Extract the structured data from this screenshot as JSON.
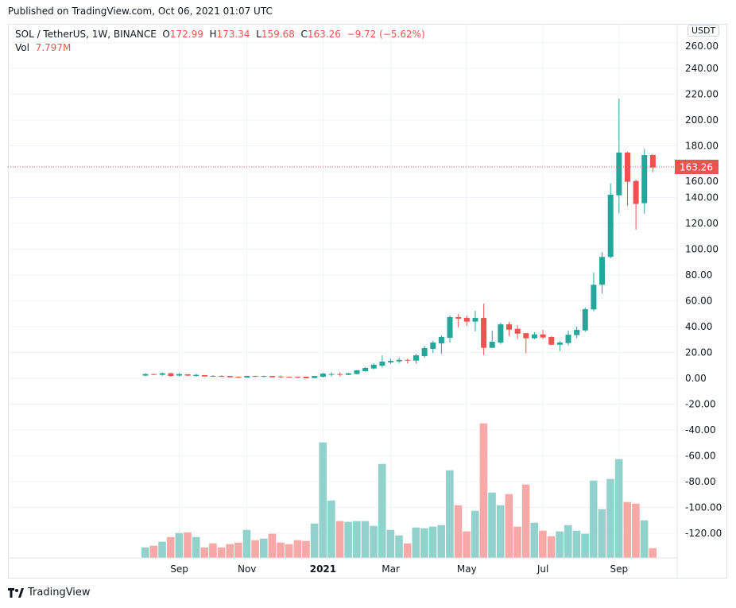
{
  "published": "Published on TradingView.com, Oct 06, 2021 01:07 UTC",
  "legend": {
    "symbol": "SOL / TetherUS, 1W, BINANCE",
    "o_label": "O",
    "o": "172.99",
    "h_label": "H",
    "h": "173.34",
    "l_label": "L",
    "l": "159.68",
    "c_label": "C",
    "c": "163.26",
    "change": "−9.72 (−5.62%)",
    "vol_label": "Vol",
    "vol": "7.797M"
  },
  "currency_button": "USDT",
  "last_price_tag": "163.26",
  "footer_brand": "TradingView",
  "colors": {
    "up": "#26a69a",
    "down": "#ef5350",
    "vol_up": "#92d2cc",
    "vol_down": "#f7a9a7",
    "grid": "#f0f3fa"
  },
  "chart_data": {
    "type": "candlestick",
    "price_axis_ticks": [
      "260.00",
      "240.00",
      "220.00",
      "200.00",
      "180.00",
      "160.00",
      "140.00",
      "120.00",
      "100.00",
      "80.00",
      "60.00",
      "40.00",
      "20.00",
      "0.00",
      "-20.00",
      "-40.00",
      "-60.00",
      "-80.00",
      "-100.00",
      "-120.00"
    ],
    "time_axis_ticks": [
      "Sep",
      "Nov",
      "2021",
      "Mar",
      "May",
      "Jul",
      "Sep"
    ],
    "last_price": 163.26,
    "ohlc": [
      [
        2.1,
        4.1,
        1.6,
        3.3
      ],
      [
        3.3,
        3.5,
        2.5,
        2.9
      ],
      [
        2.7,
        4.5,
        1.8,
        3.9
      ],
      [
        3.9,
        4.5,
        1.2,
        1.8
      ],
      [
        2.1,
        4.1,
        1.4,
        3.3
      ],
      [
        3.1,
        3.3,
        1.6,
        2.1
      ],
      [
        1.8,
        3.5,
        1.2,
        2.7
      ],
      [
        2.5,
        2.5,
        1.4,
        1.4
      ],
      [
        1.8,
        2.5,
        1.2,
        1.4
      ],
      [
        1.8,
        2.5,
        1.2,
        1.4
      ],
      [
        1.8,
        1.8,
        0.8,
        0.8
      ],
      [
        1.2,
        1.4,
        0.4,
        0.8
      ],
      [
        0.6,
        2.0,
        0.4,
        1.8
      ],
      [
        1.8,
        2.1,
        1.0,
        1.2
      ],
      [
        1.2,
        2.1,
        0.8,
        1.8
      ],
      [
        1.8,
        1.8,
        0.8,
        0.8
      ],
      [
        1.4,
        2.1,
        0.6,
        0.8
      ],
      [
        1.2,
        1.4,
        0.6,
        0.8
      ],
      [
        1.2,
        1.4,
        0.6,
        0.8
      ],
      [
        1.2,
        1.4,
        0.0,
        0.0
      ],
      [
        0.2,
        1.9,
        0.0,
        1.8
      ],
      [
        1.2,
        4.0,
        0.6,
        3.7
      ],
      [
        2.7,
        4.7,
        1.4,
        3.3
      ],
      [
        3.3,
        4.7,
        1.4,
        2.9
      ],
      [
        2.7,
        4.1,
        2.3,
        3.9
      ],
      [
        3.3,
        6.5,
        3.1,
        6.2
      ],
      [
        5.5,
        8.8,
        5.1,
        8.0
      ],
      [
        7.6,
        11.7,
        7.0,
        10.5
      ],
      [
        9.8,
        17.8,
        8.2,
        12.9
      ],
      [
        12.3,
        15.3,
        11.1,
        13.5
      ],
      [
        13.1,
        16.0,
        11.7,
        14.3
      ],
      [
        14.3,
        15.2,
        11.5,
        13.9
      ],
      [
        13.7,
        19.0,
        11.3,
        17.8
      ],
      [
        17.2,
        25.2,
        16.0,
        23.4
      ],
      [
        22.8,
        28.9,
        19.5,
        27.7
      ],
      [
        27.0,
        33.0,
        19.0,
        32.0
      ],
      [
        31.4,
        48.6,
        27.7,
        47.4
      ],
      [
        47.4,
        49.8,
        39.4,
        46.2
      ],
      [
        46.8,
        48.6,
        40.6,
        43.9
      ],
      [
        43.9,
        52.3,
        36.3,
        46.8
      ],
      [
        46.8,
        57.8,
        18.0,
        23.6
      ],
      [
        23.6,
        36.9,
        23.6,
        28.3
      ],
      [
        27.7,
        43.0,
        26.5,
        41.8
      ],
      [
        41.8,
        43.7,
        32.8,
        37.7
      ],
      [
        38.3,
        41.2,
        30.3,
        34.6
      ],
      [
        35.0,
        35.0,
        19.3,
        31.0
      ],
      [
        31.0,
        35.7,
        30.3,
        34.0
      ],
      [
        34.0,
        37.5,
        30.3,
        31.6
      ],
      [
        32.0,
        32.5,
        25.5,
        26.0
      ],
      [
        26.0,
        28.9,
        21.1,
        27.7
      ],
      [
        27.3,
        36.9,
        25.5,
        33.8
      ],
      [
        33.4,
        40.0,
        31.0,
        37.5
      ],
      [
        37.1,
        54.8,
        35.9,
        53.5
      ],
      [
        53.3,
        81.8,
        51.9,
        72.4
      ],
      [
        72.4,
        97.6,
        65.6,
        94.0
      ],
      [
        94.0,
        150.8,
        92.9,
        142.2
      ],
      [
        141.7,
        216.6,
        127.6,
        174.8
      ],
      [
        174.8,
        175.4,
        133.5,
        152.2
      ],
      [
        152.8,
        153.8,
        115.1,
        135.0
      ],
      [
        135.6,
        177.6,
        127.4,
        172.9
      ],
      [
        172.99,
        173.34,
        159.68,
        163.26
      ]
    ],
    "volume_millions": [
      8.4,
      9.7,
      12.9,
      16.6,
      19.8,
      20.4,
      16.6,
      8.4,
      11.6,
      8.4,
      11.0,
      12.2,
      22.3,
      14.1,
      15.4,
      19.2,
      12.2,
      11.0,
      14.1,
      13.5,
      27.4,
      91.9,
      45.7,
      29.3,
      28.7,
      29.3,
      29.3,
      25.5,
      74.8,
      22.3,
      17.9,
      11.6,
      24.2,
      23.6,
      24.9,
      26.1,
      69.7,
      41.9,
      21.1,
      37.5,
      107.0,
      52.0,
      41.9,
      50.8,
      24.9,
      58.4,
      28.0,
      21.7,
      17.3,
      21.1,
      26.1,
      21.7,
      19.2,
      61.5,
      38.8,
      62.8,
      78.6,
      44.5,
      43.2,
      29.9,
      7.797
    ]
  }
}
